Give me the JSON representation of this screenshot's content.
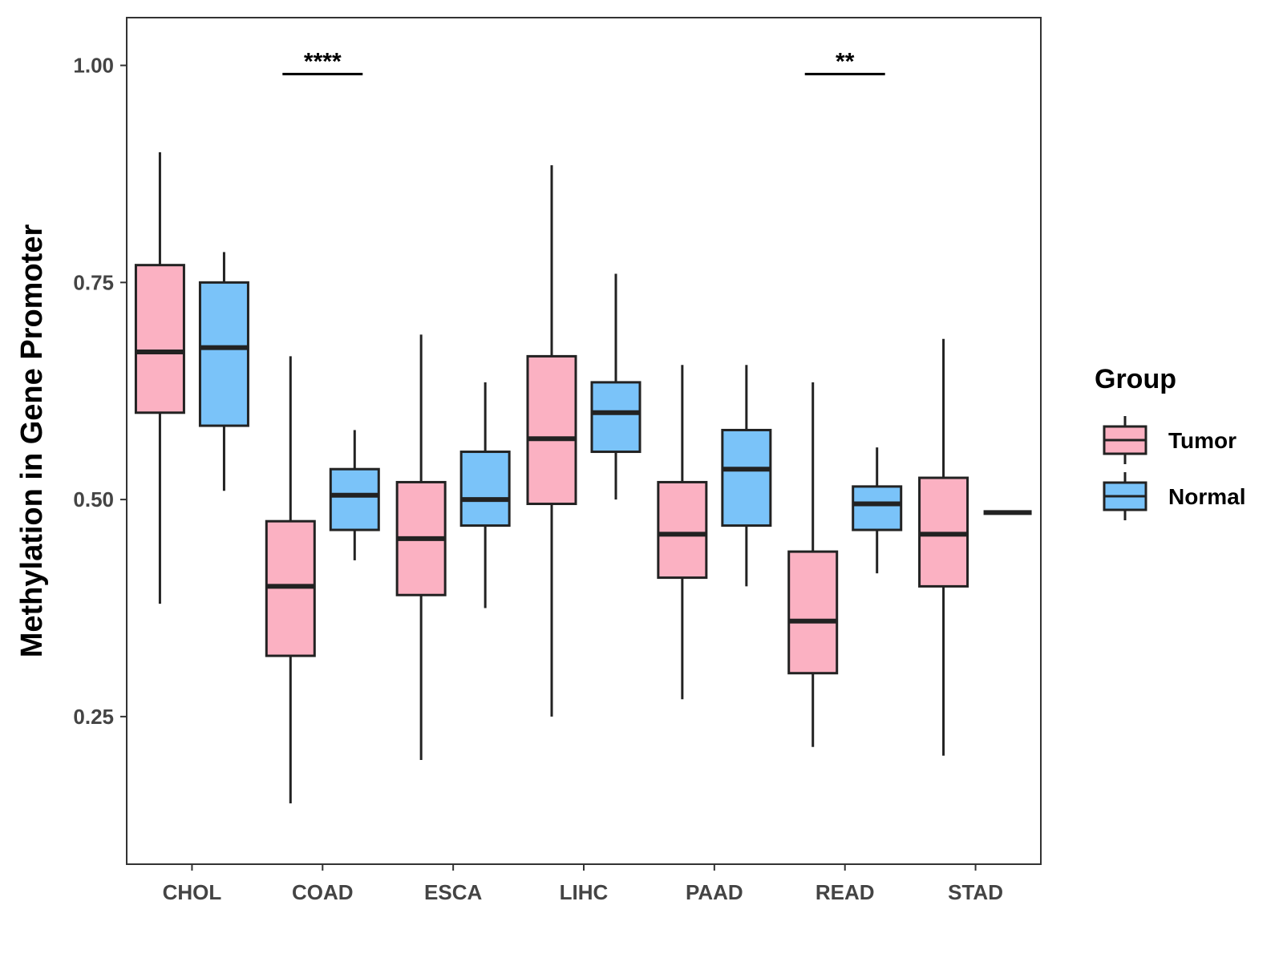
{
  "chart_data": {
    "type": "boxplot",
    "title": "",
    "xlabel": "",
    "ylabel": "Methylation in Gene Promoter",
    "ylim": [
      0.08,
      1.055
    ],
    "yticks": [
      0.25,
      0.5,
      0.75,
      1.0
    ],
    "ytick_labels": [
      "0.25",
      "0.50",
      "0.75",
      "1.00"
    ],
    "categories": [
      "CHOL",
      "COAD",
      "ESCA",
      "LIHC",
      "PAAD",
      "READ",
      "STAD"
    ],
    "legend": {
      "title": "Group",
      "position": "right",
      "entries": [
        {
          "label": "Tumor",
          "color": "#FBB1C2"
        },
        {
          "label": "Normal",
          "color": "#7AC3F9"
        }
      ]
    },
    "series": [
      {
        "name": "Tumor",
        "color": "#FBB1C2",
        "boxes": [
          {
            "category": "CHOL",
            "min": 0.38,
            "q1": 0.6,
            "median": 0.67,
            "q3": 0.77,
            "max": 0.9
          },
          {
            "category": "COAD",
            "min": 0.15,
            "q1": 0.32,
            "median": 0.4,
            "q3": 0.475,
            "max": 0.665
          },
          {
            "category": "ESCA",
            "min": 0.2,
            "q1": 0.39,
            "median": 0.455,
            "q3": 0.52,
            "max": 0.69
          },
          {
            "category": "LIHC",
            "min": 0.25,
            "q1": 0.495,
            "median": 0.57,
            "q3": 0.665,
            "max": 0.885
          },
          {
            "category": "PAAD",
            "min": 0.27,
            "q1": 0.41,
            "median": 0.46,
            "q3": 0.52,
            "max": 0.655
          },
          {
            "category": "READ",
            "min": 0.215,
            "q1": 0.3,
            "median": 0.36,
            "q3": 0.44,
            "max": 0.635
          },
          {
            "category": "STAD",
            "min": 0.205,
            "q1": 0.4,
            "median": 0.46,
            "q3": 0.525,
            "max": 0.685
          }
        ]
      },
      {
        "name": "Normal",
        "color": "#7AC3F9",
        "boxes": [
          {
            "category": "CHOL",
            "min": 0.51,
            "q1": 0.585,
            "median": 0.675,
            "q3": 0.75,
            "max": 0.785
          },
          {
            "category": "COAD",
            "min": 0.43,
            "q1": 0.465,
            "median": 0.505,
            "q3": 0.535,
            "max": 0.58
          },
          {
            "category": "ESCA",
            "min": 0.375,
            "q1": 0.47,
            "median": 0.5,
            "q3": 0.555,
            "max": 0.635
          },
          {
            "category": "LIHC",
            "min": 0.5,
            "q1": 0.555,
            "median": 0.6,
            "q3": 0.635,
            "max": 0.76
          },
          {
            "category": "PAAD",
            "min": 0.4,
            "q1": 0.47,
            "median": 0.535,
            "q3": 0.58,
            "max": 0.655
          },
          {
            "category": "READ",
            "min": 0.415,
            "q1": 0.465,
            "median": 0.495,
            "q3": 0.515,
            "max": 0.56
          },
          {
            "category": "STAD",
            "min": 0.485,
            "q1": 0.485,
            "median": 0.485,
            "q3": 0.485,
            "max": 0.485
          }
        ]
      }
    ],
    "annotations": [
      {
        "category": "COAD",
        "label": "****",
        "y": 0.99
      },
      {
        "category": "READ",
        "label": "**",
        "y": 0.99
      }
    ]
  }
}
